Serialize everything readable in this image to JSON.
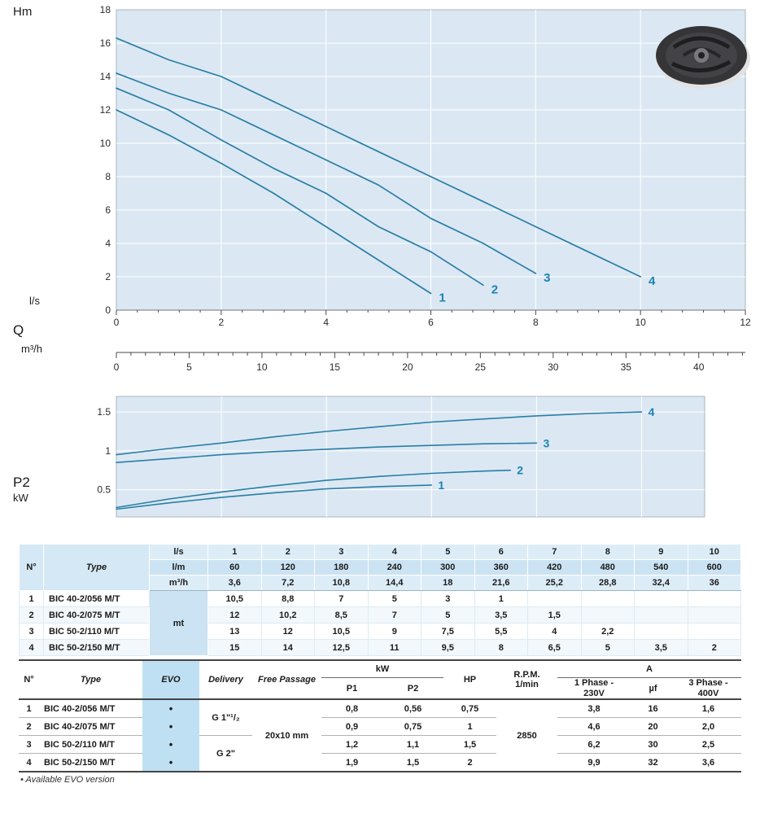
{
  "colors": {
    "chart_bg": "#dbe8f3",
    "plot_border": "#a9b6bf",
    "grid": "#ffffff",
    "curve": "#2a7ea6",
    "curve_label": "#1d83b4",
    "axis_text": "#2a2a2a",
    "evo_bg": "#bfe0f3",
    "header_bg": "#ddedf8"
  },
  "labels": {
    "q": "Q"
  },
  "chart_data": [
    {
      "type": "line",
      "title": "Head vs flow curves",
      "ylabel": "Hm",
      "xlabel": "l/s",
      "xlabel2": "m³/h",
      "xlim": [
        0,
        12
      ],
      "ylim": [
        0,
        18
      ],
      "yticks": [
        0,
        2,
        4,
        6,
        8,
        10,
        12,
        14,
        16,
        18
      ],
      "xticks_ls": [
        0,
        2,
        4,
        6,
        8,
        10,
        12
      ],
      "xticks_m3h": [
        0,
        5,
        10,
        15,
        20,
        25,
        30,
        35,
        40
      ],
      "grid": true,
      "series": [
        {
          "name": "1",
          "points": [
            [
              0,
              12
            ],
            [
              1,
              10.5
            ],
            [
              2,
              8.8
            ],
            [
              3,
              7
            ],
            [
              4,
              5
            ],
            [
              5,
              3
            ],
            [
              6,
              1
            ]
          ]
        },
        {
          "name": "2",
          "points": [
            [
              0,
              13.3
            ],
            [
              1,
              12
            ],
            [
              2,
              10.2
            ],
            [
              3,
              8.5
            ],
            [
              4,
              7
            ],
            [
              5,
              5
            ],
            [
              6,
              3.5
            ],
            [
              7,
              1.5
            ]
          ]
        },
        {
          "name": "3",
          "points": [
            [
              0,
              14.2
            ],
            [
              1,
              13
            ],
            [
              2,
              12
            ],
            [
              3,
              10.5
            ],
            [
              4,
              9
            ],
            [
              5,
              7.5
            ],
            [
              6,
              5.5
            ],
            [
              7,
              4
            ],
            [
              8,
              2.2
            ]
          ]
        },
        {
          "name": "4",
          "points": [
            [
              0,
              16.3
            ],
            [
              1,
              15
            ],
            [
              2,
              14
            ],
            [
              3,
              12.5
            ],
            [
              4,
              11
            ],
            [
              5,
              9.5
            ],
            [
              6,
              8
            ],
            [
              7,
              6.5
            ],
            [
              8,
              5
            ],
            [
              9,
              3.5
            ],
            [
              10,
              2
            ]
          ]
        }
      ]
    },
    {
      "type": "line",
      "title": "Absorbed power P2 vs flow",
      "ylabel": "P2",
      "ylabel_unit": "kW",
      "xlim": [
        0,
        11.2
      ],
      "ylim": [
        0.15,
        1.7
      ],
      "yticks": [
        0.5,
        1,
        1.5
      ],
      "grid": true,
      "series": [
        {
          "name": "1",
          "points": [
            [
              0,
              0.25
            ],
            [
              1,
              0.33
            ],
            [
              2,
              0.4
            ],
            [
              3,
              0.46
            ],
            [
              4,
              0.51
            ],
            [
              5,
              0.54
            ],
            [
              6,
              0.56
            ]
          ]
        },
        {
          "name": "2",
          "points": [
            [
              0,
              0.27
            ],
            [
              1,
              0.38
            ],
            [
              2,
              0.47
            ],
            [
              3,
              0.55
            ],
            [
              4,
              0.62
            ],
            [
              5,
              0.67
            ],
            [
              6,
              0.71
            ],
            [
              7,
              0.74
            ],
            [
              7.5,
              0.75
            ]
          ]
        },
        {
          "name": "3",
          "points": [
            [
              0,
              0.85
            ],
            [
              1,
              0.9
            ],
            [
              2,
              0.95
            ],
            [
              3,
              0.99
            ],
            [
              4,
              1.02
            ],
            [
              5,
              1.05
            ],
            [
              6,
              1.07
            ],
            [
              7,
              1.09
            ],
            [
              8,
              1.1
            ]
          ]
        },
        {
          "name": "4",
          "points": [
            [
              0,
              0.95
            ],
            [
              1,
              1.03
            ],
            [
              2,
              1.1
            ],
            [
              3,
              1.18
            ],
            [
              4,
              1.25
            ],
            [
              5,
              1.31
            ],
            [
              6,
              1.37
            ],
            [
              7,
              1.41
            ],
            [
              8,
              1.45
            ],
            [
              9,
              1.48
            ],
            [
              10,
              1.5
            ]
          ]
        }
      ]
    }
  ],
  "table1": {
    "col_headers": {
      "n": "N°",
      "type": "Type"
    },
    "unit_header_rows": [
      {
        "unit": "l/s",
        "values": [
          "1",
          "2",
          "3",
          "4",
          "5",
          "6",
          "7",
          "8",
          "9",
          "10"
        ]
      },
      {
        "unit": "l/m",
        "values": [
          "60",
          "120",
          "180",
          "240",
          "300",
          "360",
          "420",
          "480",
          "540",
          "600"
        ]
      },
      {
        "unit": "m³/h",
        "values": [
          "3,6",
          "7,2",
          "10,8",
          "14,4",
          "18",
          "21,6",
          "25,2",
          "28,8",
          "32,4",
          "36"
        ]
      }
    ],
    "body_unit": "mt",
    "rows": [
      {
        "n": "1",
        "type": "BIC 40-2/056  M/T",
        "values": [
          "10,5",
          "8,8",
          "7",
          "5",
          "3",
          "1",
          "",
          "",
          "",
          ""
        ]
      },
      {
        "n": "2",
        "type": "BIC 40-2/075  M/T",
        "values": [
          "12",
          "10,2",
          "8,5",
          "7",
          "5",
          "3,5",
          "1,5",
          "",
          "",
          ""
        ]
      },
      {
        "n": "3",
        "type": "BIC 50-2/110  M/T",
        "values": [
          "13",
          "12",
          "10,5",
          "9",
          "7,5",
          "5,5",
          "4",
          "2,2",
          "",
          ""
        ]
      },
      {
        "n": "4",
        "type": "BIC 50-2/150  M/T",
        "values": [
          "15",
          "14",
          "12,5",
          "11",
          "9,5",
          "8",
          "6,5",
          "5",
          "3,5",
          "2"
        ]
      }
    ]
  },
  "table2": {
    "headers": {
      "n": "N°",
      "type": "Type",
      "evo": "EVO",
      "delivery": "Delivery",
      "free_passage": "Free Passage",
      "kw": "kW",
      "p1": "P1",
      "p2": "P2",
      "hp": "HP",
      "rpm": "R.P.M.\n1/min",
      "a": "A",
      "phase1": "1 Phase -\n230V",
      "uf": "µf",
      "phase3": "3 Phase -\n400V"
    },
    "delivery_groups": [
      {
        "label": "G 1\"¹/₂",
        "rows": 2
      },
      {
        "label": "G 2\"",
        "rows": 2
      }
    ],
    "free_passage_value": "20x10 mm",
    "rpm_value": "2850",
    "rows": [
      {
        "n": "1",
        "type": "BIC 40-2/056  M/T",
        "evo": "•",
        "p1": "0,8",
        "p2": "0,56",
        "hp": "0,75",
        "phase1": "3,8",
        "uf": "16",
        "phase3": "1,6"
      },
      {
        "n": "2",
        "type": "BIC 40-2/075  M/T",
        "evo": "•",
        "p1": "0,9",
        "p2": "0,75",
        "hp": "1",
        "phase1": "4,6",
        "uf": "20",
        "phase3": "2,0"
      },
      {
        "n": "3",
        "type": "BIC 50-2/110  M/T",
        "evo": "•",
        "p1": "1,2",
        "p2": "1,1",
        "hp": "1,5",
        "phase1": "6,2",
        "uf": "30",
        "phase3": "2,5"
      },
      {
        "n": "4",
        "type": "BIC 50-2/150  M/T",
        "evo": "•",
        "p1": "1,9",
        "p2": "1,5",
        "hp": "2",
        "phase1": "9,9",
        "uf": "32",
        "phase3": "3,6"
      }
    ]
  },
  "footnote": "• Available EVO version"
}
